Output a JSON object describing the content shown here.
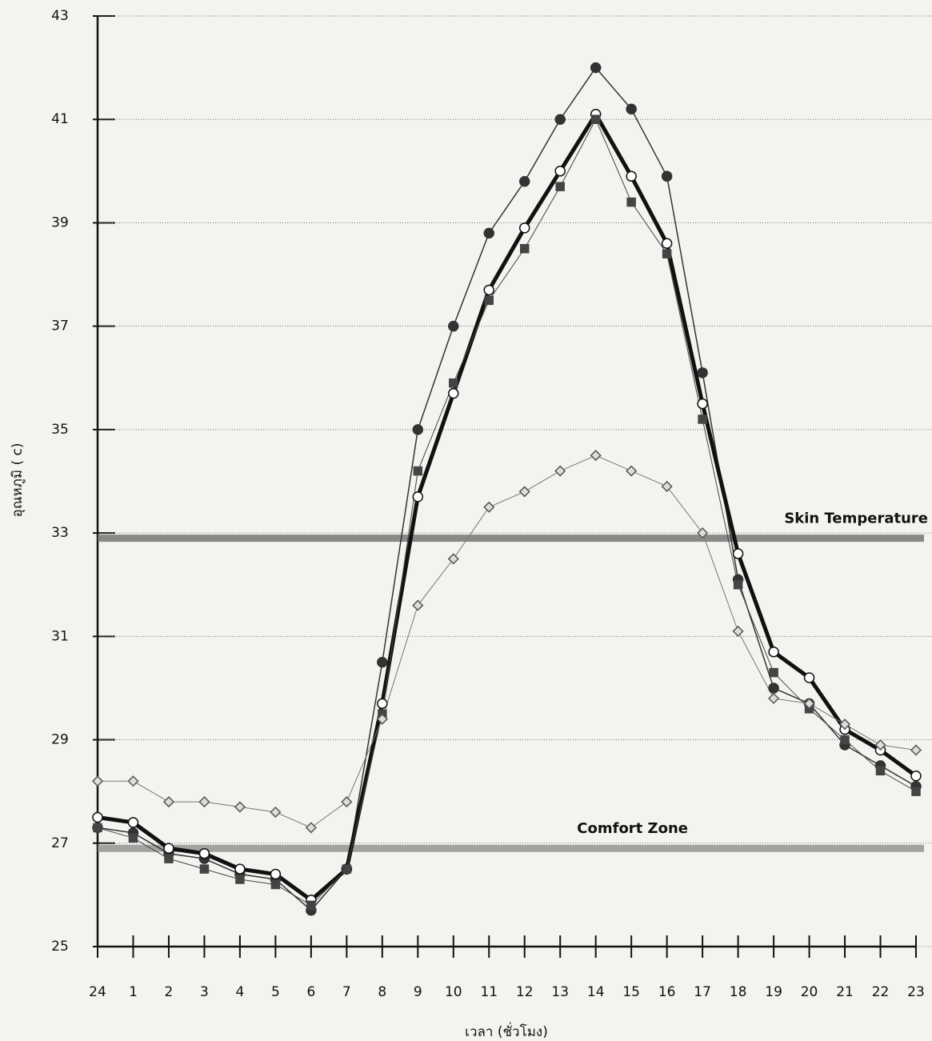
{
  "chart_data": {
    "type": "line",
    "y_label": "อุณหภูมิ ( c)",
    "x_label": "เวลา (ชั่วโมง)",
    "categories": [
      "24",
      "1",
      "2",
      "3",
      "4",
      "5",
      "6",
      "7",
      "8",
      "9",
      "10",
      "11",
      "12",
      "13",
      "14",
      "15",
      "16",
      "17",
      "18",
      "19",
      "20",
      "21",
      "22",
      "23"
    ],
    "ylim": [
      25,
      43
    ],
    "yticks": [
      25,
      27,
      29,
      31,
      33,
      35,
      37,
      39,
      41,
      43
    ],
    "grid": true,
    "series": [
      {
        "color": "#333333",
        "marker": "circle-filled",
        "line_width": 1.5,
        "values": [
          27.3,
          27.2,
          26.8,
          26.7,
          26.4,
          26.3,
          25.7,
          26.5,
          30.5,
          35.0,
          37.0,
          38.8,
          39.8,
          41.0,
          42.0,
          41.2,
          39.9,
          36.1,
          32.1,
          30.0,
          29.7,
          28.9,
          28.5,
          28.1
        ]
      },
      {
        "color": "#111111",
        "marker": "circle-open",
        "line_width": 5,
        "values": [
          27.5,
          27.4,
          26.9,
          26.8,
          26.5,
          26.4,
          25.9,
          26.5,
          29.7,
          33.7,
          35.7,
          37.7,
          38.9,
          40.0,
          41.1,
          39.9,
          38.6,
          35.5,
          32.6,
          30.7,
          30.2,
          29.2,
          28.8,
          28.3
        ]
      },
      {
        "color": "#444444",
        "marker": "square",
        "line_width": 1,
        "values": [
          27.3,
          27.1,
          26.7,
          26.5,
          26.3,
          26.2,
          25.8,
          26.5,
          29.5,
          34.2,
          35.9,
          37.5,
          38.5,
          39.7,
          41.0,
          39.4,
          38.4,
          35.2,
          32.0,
          30.3,
          29.6,
          29.0,
          28.4,
          28.0
        ]
      },
      {
        "color": "#777777",
        "marker": "diamond",
        "line_width": 1,
        "values": [
          28.2,
          28.2,
          27.8,
          27.8,
          27.7,
          27.6,
          27.3,
          27.8,
          29.4,
          31.6,
          32.5,
          33.5,
          33.8,
          34.2,
          34.5,
          34.2,
          33.9,
          33.0,
          31.1,
          29.8,
          29.7,
          29.3,
          28.9,
          28.8
        ]
      }
    ],
    "reference_lines": [
      {
        "label": "Skin Temperature",
        "value": 32.9,
        "color": "#666666"
      },
      {
        "label": "Comfort Zone",
        "value": 26.9,
        "color": "#888888"
      }
    ]
  }
}
